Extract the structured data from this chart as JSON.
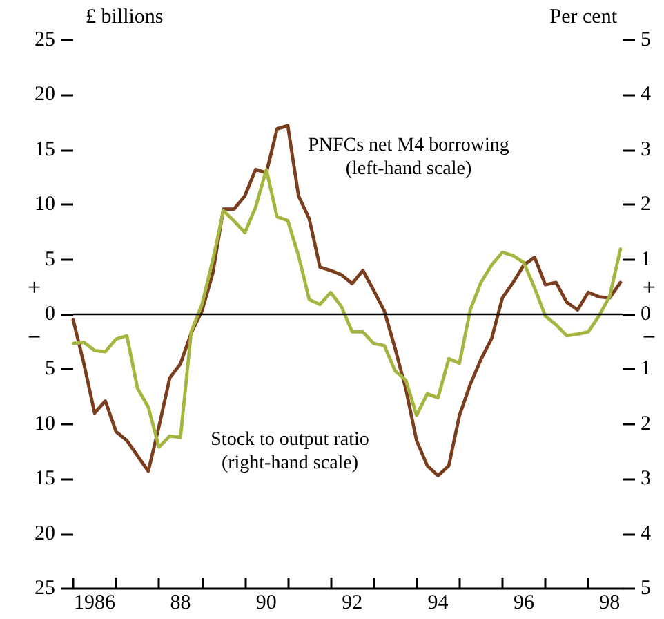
{
  "chart_data": {
    "type": "line",
    "ylabel": "£ billions",
    "y2label": "Per cent",
    "x": [
      1985.5,
      1985.75,
      1986,
      1986.25,
      1986.5,
      1986.75,
      1987,
      1987.25,
      1987.5,
      1987.75,
      1988,
      1988.25,
      1988.5,
      1988.75,
      1989,
      1989.25,
      1989.5,
      1989.75,
      1990,
      1990.25,
      1990.5,
      1990.75,
      1991,
      1991.25,
      1991.5,
      1991.75,
      1992,
      1992.25,
      1992.5,
      1992.75,
      1993,
      1993.25,
      1993.5,
      1993.75,
      1994,
      1994.25,
      1994.5,
      1994.75,
      1995,
      1995.25,
      1995.5,
      1995.75,
      1996,
      1996.25,
      1996.5,
      1996.75,
      1997,
      1997.25,
      1997.5,
      1997.75,
      1998,
      1998.25
    ],
    "series": [
      {
        "name": "PNFCs net M4 borrowing\n(left-hand scale)",
        "color": "#7a3e1f",
        "values": [
          -0.5,
          -4.5,
          -9.0,
          -7.9,
          -10.7,
          -11.5,
          -12.9,
          -14.3,
          -10.2,
          -5.8,
          -4.5,
          -1.7,
          0.3,
          3.7,
          9.6,
          9.6,
          10.8,
          13.2,
          12.9,
          16.9,
          17.2,
          10.8,
          8.7,
          4.3,
          4.0,
          3.6,
          2.8,
          4.0,
          2.2,
          0.3,
          -3.1,
          -6.8,
          -11.5,
          -13.8,
          -14.7,
          -13.8,
          -9.2,
          -6.4,
          -4.1,
          -2.2,
          1.5,
          2.9,
          4.5,
          5.2,
          2.7,
          2.9,
          1.1,
          0.4,
          2.0,
          1.6,
          1.5,
          2.9
        ]
      },
      {
        "name": "Stock to output ratio\n(right-hand scale)",
        "color": "#a5b540",
        "axis": "y2",
        "values": [
          -0.53,
          -0.51,
          -0.66,
          -0.68,
          -0.45,
          -0.39,
          -1.35,
          -1.69,
          -2.42,
          -2.22,
          -2.24,
          -0.32,
          0.18,
          0.98,
          1.89,
          1.7,
          1.49,
          1.95,
          2.64,
          1.78,
          1.71,
          1.07,
          0.27,
          0.18,
          0.4,
          0.14,
          -0.32,
          -0.32,
          -0.53,
          -0.57,
          -1.03,
          -1.2,
          -1.84,
          -1.45,
          -1.52,
          -0.81,
          -0.89,
          0.08,
          0.58,
          0.9,
          1.13,
          1.07,
          0.94,
          0.48,
          -0.03,
          -0.19,
          -0.39,
          -0.36,
          -0.32,
          -0.03,
          0.33,
          1.19
        ]
      }
    ],
    "xlim": [
      1985.5,
      1998.3
    ],
    "xticks": [
      {
        "value": 1985.5,
        "label": null
      },
      1986,
      {
        "value": 1986.5,
        "label": null
      },
      {
        "value": 1987.5,
        "label": null
      },
      {
        "value": 1988,
        "label": "88"
      },
      {
        "value": 1988.5,
        "label": null
      },
      {
        "value": 1989.5,
        "label": null
      },
      {
        "value": 1990,
        "label": "90"
      },
      {
        "value": 1990.5,
        "label": null
      },
      {
        "value": 1991.5,
        "label": null
      },
      {
        "value": 1992,
        "label": "92"
      },
      {
        "value": 1992.5,
        "label": null
      },
      {
        "value": 1993.5,
        "label": null
      },
      {
        "value": 1994,
        "label": "94"
      },
      {
        "value": 1994.5,
        "label": null
      },
      {
        "value": 1995.5,
        "label": null
      },
      {
        "value": 1996,
        "label": "96"
      },
      {
        "value": 1996.5,
        "label": null
      },
      {
        "value": 1997.5,
        "label": null
      },
      {
        "value": 1998,
        "label": "98"
      }
    ],
    "ylim": [
      -25,
      25
    ],
    "yticks": [
      {
        "value": -25,
        "label": "25"
      },
      {
        "value": -20,
        "label": "20"
      },
      {
        "value": -15,
        "label": "15"
      },
      {
        "value": -10,
        "label": "10"
      },
      {
        "value": -5,
        "label": "5"
      },
      0,
      5,
      10,
      15,
      20,
      25
    ],
    "y2lim": [
      -5,
      5
    ],
    "y2ticks": [
      {
        "value": -5,
        "label": "5"
      },
      {
        "value": -4,
        "label": "4"
      },
      {
        "value": -3,
        "label": "3"
      },
      {
        "value": -2,
        "label": "2"
      },
      {
        "value": -1,
        "label": "1"
      },
      0,
      1,
      2,
      3,
      4,
      5
    ],
    "ref_lines": [
      {
        "axis": "y",
        "value": 0,
        "color": "#000000"
      }
    ],
    "annotations": [
      "+",
      "−"
    ],
    "grid": false,
    "legend": false
  }
}
